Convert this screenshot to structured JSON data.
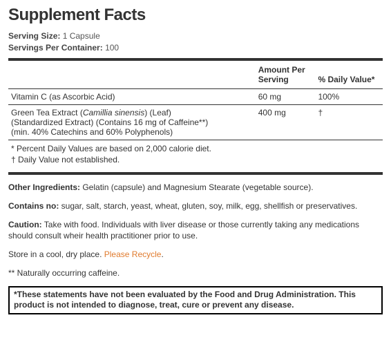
{
  "title": "Supplement Facts",
  "serving": {
    "size_label": "Serving Size:",
    "size_value": "1 Capsule",
    "per_container_label": "Servings Per Container:",
    "per_container_value": "100"
  },
  "headers": {
    "name": "",
    "amount": "Amount Per Serving",
    "dv": "% Daily Value*"
  },
  "rows": [
    {
      "name": "Vitamin C (as Ascorbic Acid)",
      "amount": "60 mg",
      "dv": "100%"
    },
    {
      "name_line1_a": "Green Tea Extract (",
      "name_line1_italic": "Camillia sinensis",
      "name_line1_b": ") (Leaf)",
      "name_line2": "(Standardized Extract) (Contains 16 mg of Caffeine**)",
      "name_line3": "(min. 40% Catechins and 60% Polyphenols)",
      "amount": "400 mg",
      "dv": "†"
    }
  ],
  "footnotes": {
    "line1": "* Percent Daily Values are based on 2,000 calorie diet.",
    "line2": "† Daily Value not established."
  },
  "other_ingredients": {
    "label": "Other Ingredients:",
    "text": " Gelatin (capsule) and Magnesium Stearate (vegetable source)."
  },
  "contains_no": {
    "label": "Contains no:",
    "text": "  sugar, salt, starch, yeast, wheat, gluten, soy, milk, egg, shellfish or preservatives."
  },
  "caution": {
    "label": "Caution:",
    "text": "  Take with food.  Individuals with liver disease or those currently taking any medications should consult wheir health practitioner prior to use."
  },
  "storage": {
    "text": "Store in a cool, dry place.  ",
    "recycle": "Please Recycle",
    "period": "."
  },
  "caffeine_note": "** Naturally occurring caffeine.",
  "disclaimer": "*These statements have not been evaluated by the Food and Drug Administration. This product is not intended to diagnose, treat, cure or prevent any disease."
}
